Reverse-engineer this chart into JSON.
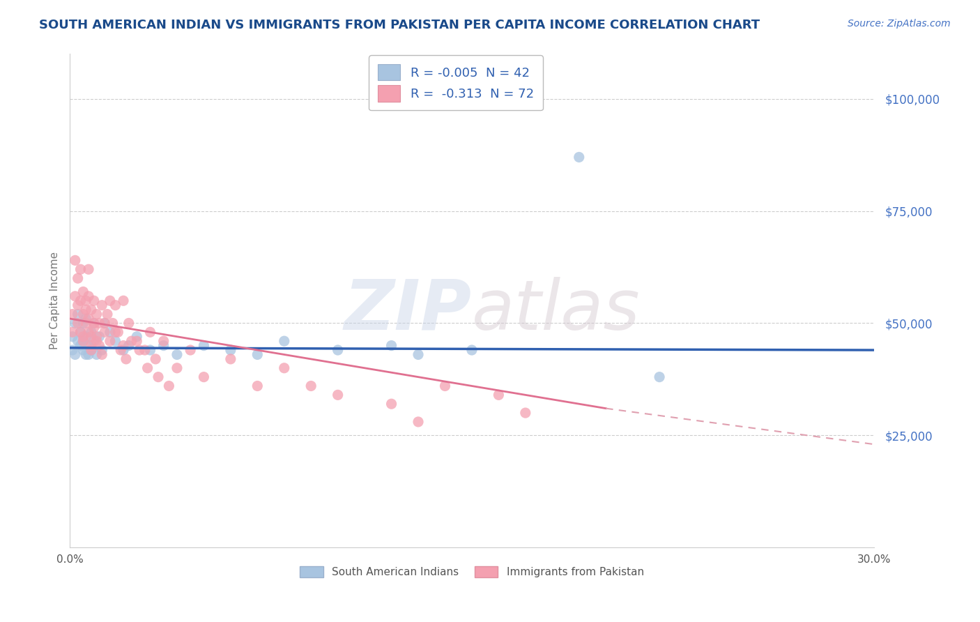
{
  "title": "SOUTH AMERICAN INDIAN VS IMMIGRANTS FROM PAKISTAN PER CAPITA INCOME CORRELATION CHART",
  "source": "Source: ZipAtlas.com",
  "ylabel": "Per Capita Income",
  "xlim": [
    0.0,
    0.3
  ],
  "ylim": [
    0,
    110000
  ],
  "yticks": [
    25000,
    50000,
    75000,
    100000
  ],
  "ytick_labels": [
    "$25,000",
    "$50,000",
    "$75,000",
    "$100,000"
  ],
  "xticks": [
    0.0,
    0.05,
    0.1,
    0.15,
    0.2,
    0.25,
    0.3
  ],
  "xtick_labels": [
    "0.0%",
    "",
    "",
    "",
    "",
    "",
    "30.0%"
  ],
  "r1": -0.005,
  "n1": 42,
  "r2": -0.313,
  "n2": 72,
  "color1": "#a8c4e0",
  "color2": "#f4a0b0",
  "trend1_color": "#3060b0",
  "trend2_color": "#e07090",
  "trend2_dash_color": "#e0a0b0",
  "title_color": "#1a4a8a",
  "source_color": "#4472c4",
  "ylabel_color": "#777777",
  "ytick_color": "#4472c4",
  "background": "#ffffff",
  "grid_color": "#c8c8c8",
  "watermark_zip": "ZIP",
  "watermark_atlas": "atlas",
  "legend_label1": "South American Indians",
  "legend_label2": "Immigrants from Pakistan",
  "scatter1_x": [
    0.001,
    0.001,
    0.002,
    0.002,
    0.003,
    0.003,
    0.004,
    0.004,
    0.005,
    0.005,
    0.005,
    0.006,
    0.006,
    0.006,
    0.007,
    0.007,
    0.008,
    0.008,
    0.009,
    0.009,
    0.01,
    0.011,
    0.012,
    0.013,
    0.015,
    0.017,
    0.02,
    0.022,
    0.025,
    0.03,
    0.035,
    0.04,
    0.05,
    0.06,
    0.08,
    0.1,
    0.12,
    0.15,
    0.19,
    0.22,
    0.13,
    0.07
  ],
  "scatter1_y": [
    47000,
    44000,
    50000,
    43000,
    52000,
    46000,
    48000,
    45000,
    44000,
    50000,
    46000,
    43000,
    47000,
    51000,
    45000,
    43000,
    48000,
    44000,
    46000,
    50000,
    43000,
    47000,
    44000,
    50000,
    48000,
    46000,
    44000,
    45000,
    47000,
    44000,
    45000,
    43000,
    45000,
    44000,
    46000,
    44000,
    45000,
    44000,
    87000,
    38000,
    43000,
    43000
  ],
  "scatter2_x": [
    0.001,
    0.001,
    0.002,
    0.002,
    0.003,
    0.003,
    0.004,
    0.004,
    0.005,
    0.005,
    0.005,
    0.006,
    0.006,
    0.007,
    0.007,
    0.007,
    0.008,
    0.008,
    0.009,
    0.009,
    0.01,
    0.01,
    0.011,
    0.012,
    0.013,
    0.014,
    0.015,
    0.016,
    0.017,
    0.018,
    0.02,
    0.022,
    0.025,
    0.028,
    0.03,
    0.032,
    0.035,
    0.04,
    0.045,
    0.05,
    0.06,
    0.07,
    0.08,
    0.09,
    0.1,
    0.12,
    0.14,
    0.17,
    0.02,
    0.008,
    0.003,
    0.004,
    0.005,
    0.006,
    0.007,
    0.008,
    0.009,
    0.01,
    0.011,
    0.012,
    0.013,
    0.015,
    0.017,
    0.019,
    0.021,
    0.023,
    0.026,
    0.029,
    0.033,
    0.037,
    0.13,
    0.16
  ],
  "scatter2_y": [
    52000,
    48000,
    64000,
    56000,
    60000,
    54000,
    62000,
    55000,
    57000,
    52000,
    47000,
    55000,
    50000,
    62000,
    56000,
    48000,
    53000,
    47000,
    55000,
    50000,
    52000,
    46000,
    50000,
    54000,
    48000,
    52000,
    55000,
    50000,
    54000,
    48000,
    45000,
    50000,
    46000,
    44000,
    48000,
    42000,
    46000,
    40000,
    44000,
    38000,
    42000,
    36000,
    40000,
    36000,
    34000,
    32000,
    36000,
    30000,
    55000,
    45000,
    50000,
    48000,
    46000,
    53000,
    51000,
    44000,
    49000,
    47000,
    45000,
    43000,
    50000,
    46000,
    48000,
    44000,
    42000,
    46000,
    44000,
    40000,
    38000,
    36000,
    28000,
    34000
  ],
  "trend1_y_at_0": 44500,
  "trend1_y_at_30": 44000,
  "trend2_y_at_0": 51000,
  "trend2_y_at_20": 31000,
  "trend2_solid_end": 0.2,
  "trend2_dash_end": 0.3,
  "trend2_y_at_30": 23000
}
